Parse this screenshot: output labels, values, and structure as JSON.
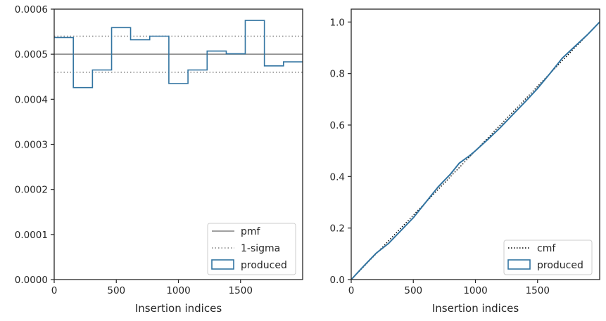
{
  "chart_data": [
    {
      "type": "histogram",
      "xlabel": "Insertion indices",
      "ylabel": "",
      "xlim": [
        0,
        2000
      ],
      "ylim": [
        0,
        0.0006
      ],
      "x_ticks": [
        0,
        500,
        1000,
        1500
      ],
      "x_tick_labels": [
        "0",
        "500",
        "1000",
        "1500"
      ],
      "y_ticks": [
        0,
        0.0001,
        0.0002,
        0.0003,
        0.0004,
        0.0005,
        0.0006
      ],
      "y_tick_labels": [
        "0.0000",
        "0.0001",
        "0.0002",
        "0.0003",
        "0.0004",
        "0.0005",
        "0.0006"
      ],
      "bin_edges": [
        0,
        154,
        308,
        462,
        615,
        769,
        923,
        1077,
        1231,
        1385,
        1538,
        1692,
        1846,
        2000
      ],
      "values": [
        0.000537,
        0.000426,
        0.000465,
        0.000559,
        0.000532,
        0.00054,
        0.000435,
        0.000465,
        0.000507,
        0.000501,
        0.000575,
        0.000474,
        0.000483
      ],
      "pmf": 0.0005,
      "sigma_upper": 0.00054,
      "sigma_lower": 0.00046,
      "legend": [
        "pmf",
        "1-sigma",
        "produced"
      ],
      "legend_position": "lower-right",
      "colors": {
        "produced": "#3274a1",
        "pmf": "#808080",
        "sigma": "#808080"
      }
    },
    {
      "type": "line",
      "xlabel": "Insertion indices",
      "ylabel": "",
      "xlim": [
        0,
        2000
      ],
      "ylim": [
        0,
        1.05
      ],
      "x_ticks": [
        0,
        500,
        1000,
        1500
      ],
      "x_tick_labels": [
        "0",
        "500",
        "1000",
        "1500"
      ],
      "y_ticks": [
        0,
        0.2,
        0.4,
        0.6,
        0.8,
        1.0
      ],
      "y_tick_labels": [
        "0.0",
        "0.2",
        "0.4",
        "0.6",
        "0.8",
        "1.0"
      ],
      "produced_x": [
        0,
        100,
        200,
        300,
        400,
        500,
        600,
        700,
        800,
        870,
        950,
        1000,
        1100,
        1200,
        1300,
        1400,
        1500,
        1600,
        1700,
        1800,
        1900,
        2000
      ],
      "produced_y": [
        0,
        0.052,
        0.102,
        0.14,
        0.19,
        0.24,
        0.3,
        0.36,
        0.41,
        0.452,
        0.48,
        0.5,
        0.544,
        0.59,
        0.64,
        0.69,
        0.742,
        0.8,
        0.86,
        0.905,
        0.95,
        1.0
      ],
      "cmf_x": [
        0,
        2000
      ],
      "cmf_y": [
        0,
        1.0
      ],
      "legend": [
        "cmf",
        "produced"
      ],
      "legend_position": "lower-right",
      "colors": {
        "produced": "#3274a1",
        "cmf": "#000000"
      }
    }
  ]
}
